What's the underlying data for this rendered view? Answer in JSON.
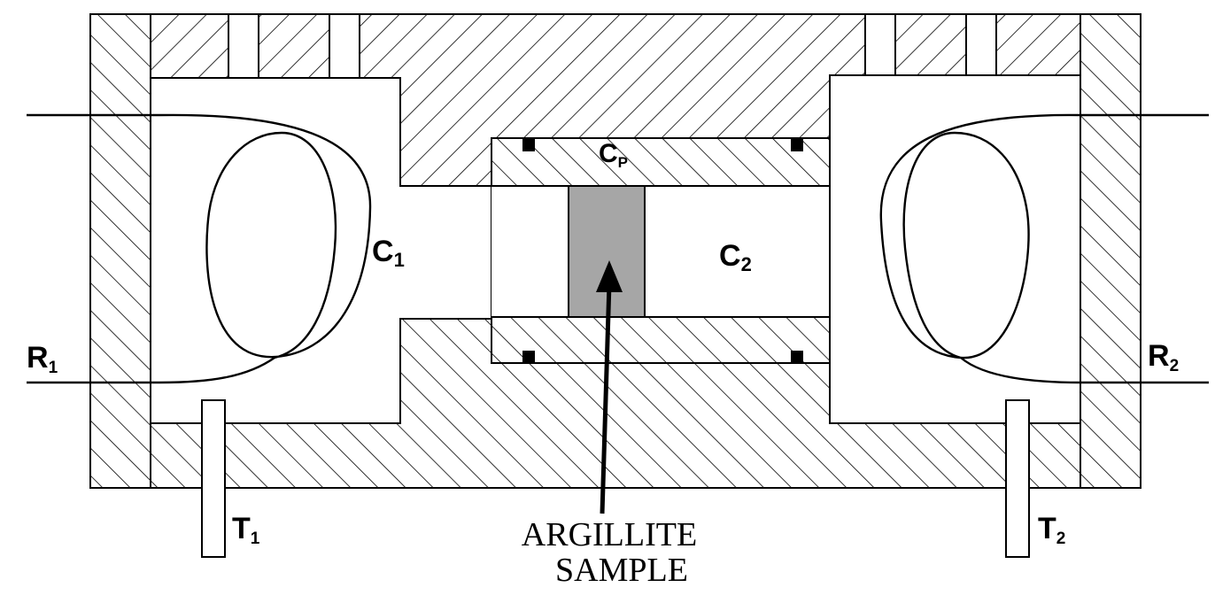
{
  "labels": {
    "c1": "C",
    "c1_sub": "1",
    "c2": "C",
    "c2_sub": "2",
    "cp": "C",
    "cp_sub": "P",
    "r1": "R",
    "r1_sub": "1",
    "r2": "R",
    "r2_sub": "2",
    "t1": "T",
    "t1_sub": "1",
    "t2": "T",
    "t2_sub": "2",
    "sample_line1": "ARGILLITE",
    "sample_line2": "SAMPLE"
  },
  "colors": {
    "ink": "#000000",
    "sample_fill": "#a6a6a6",
    "background": "#ffffff"
  }
}
